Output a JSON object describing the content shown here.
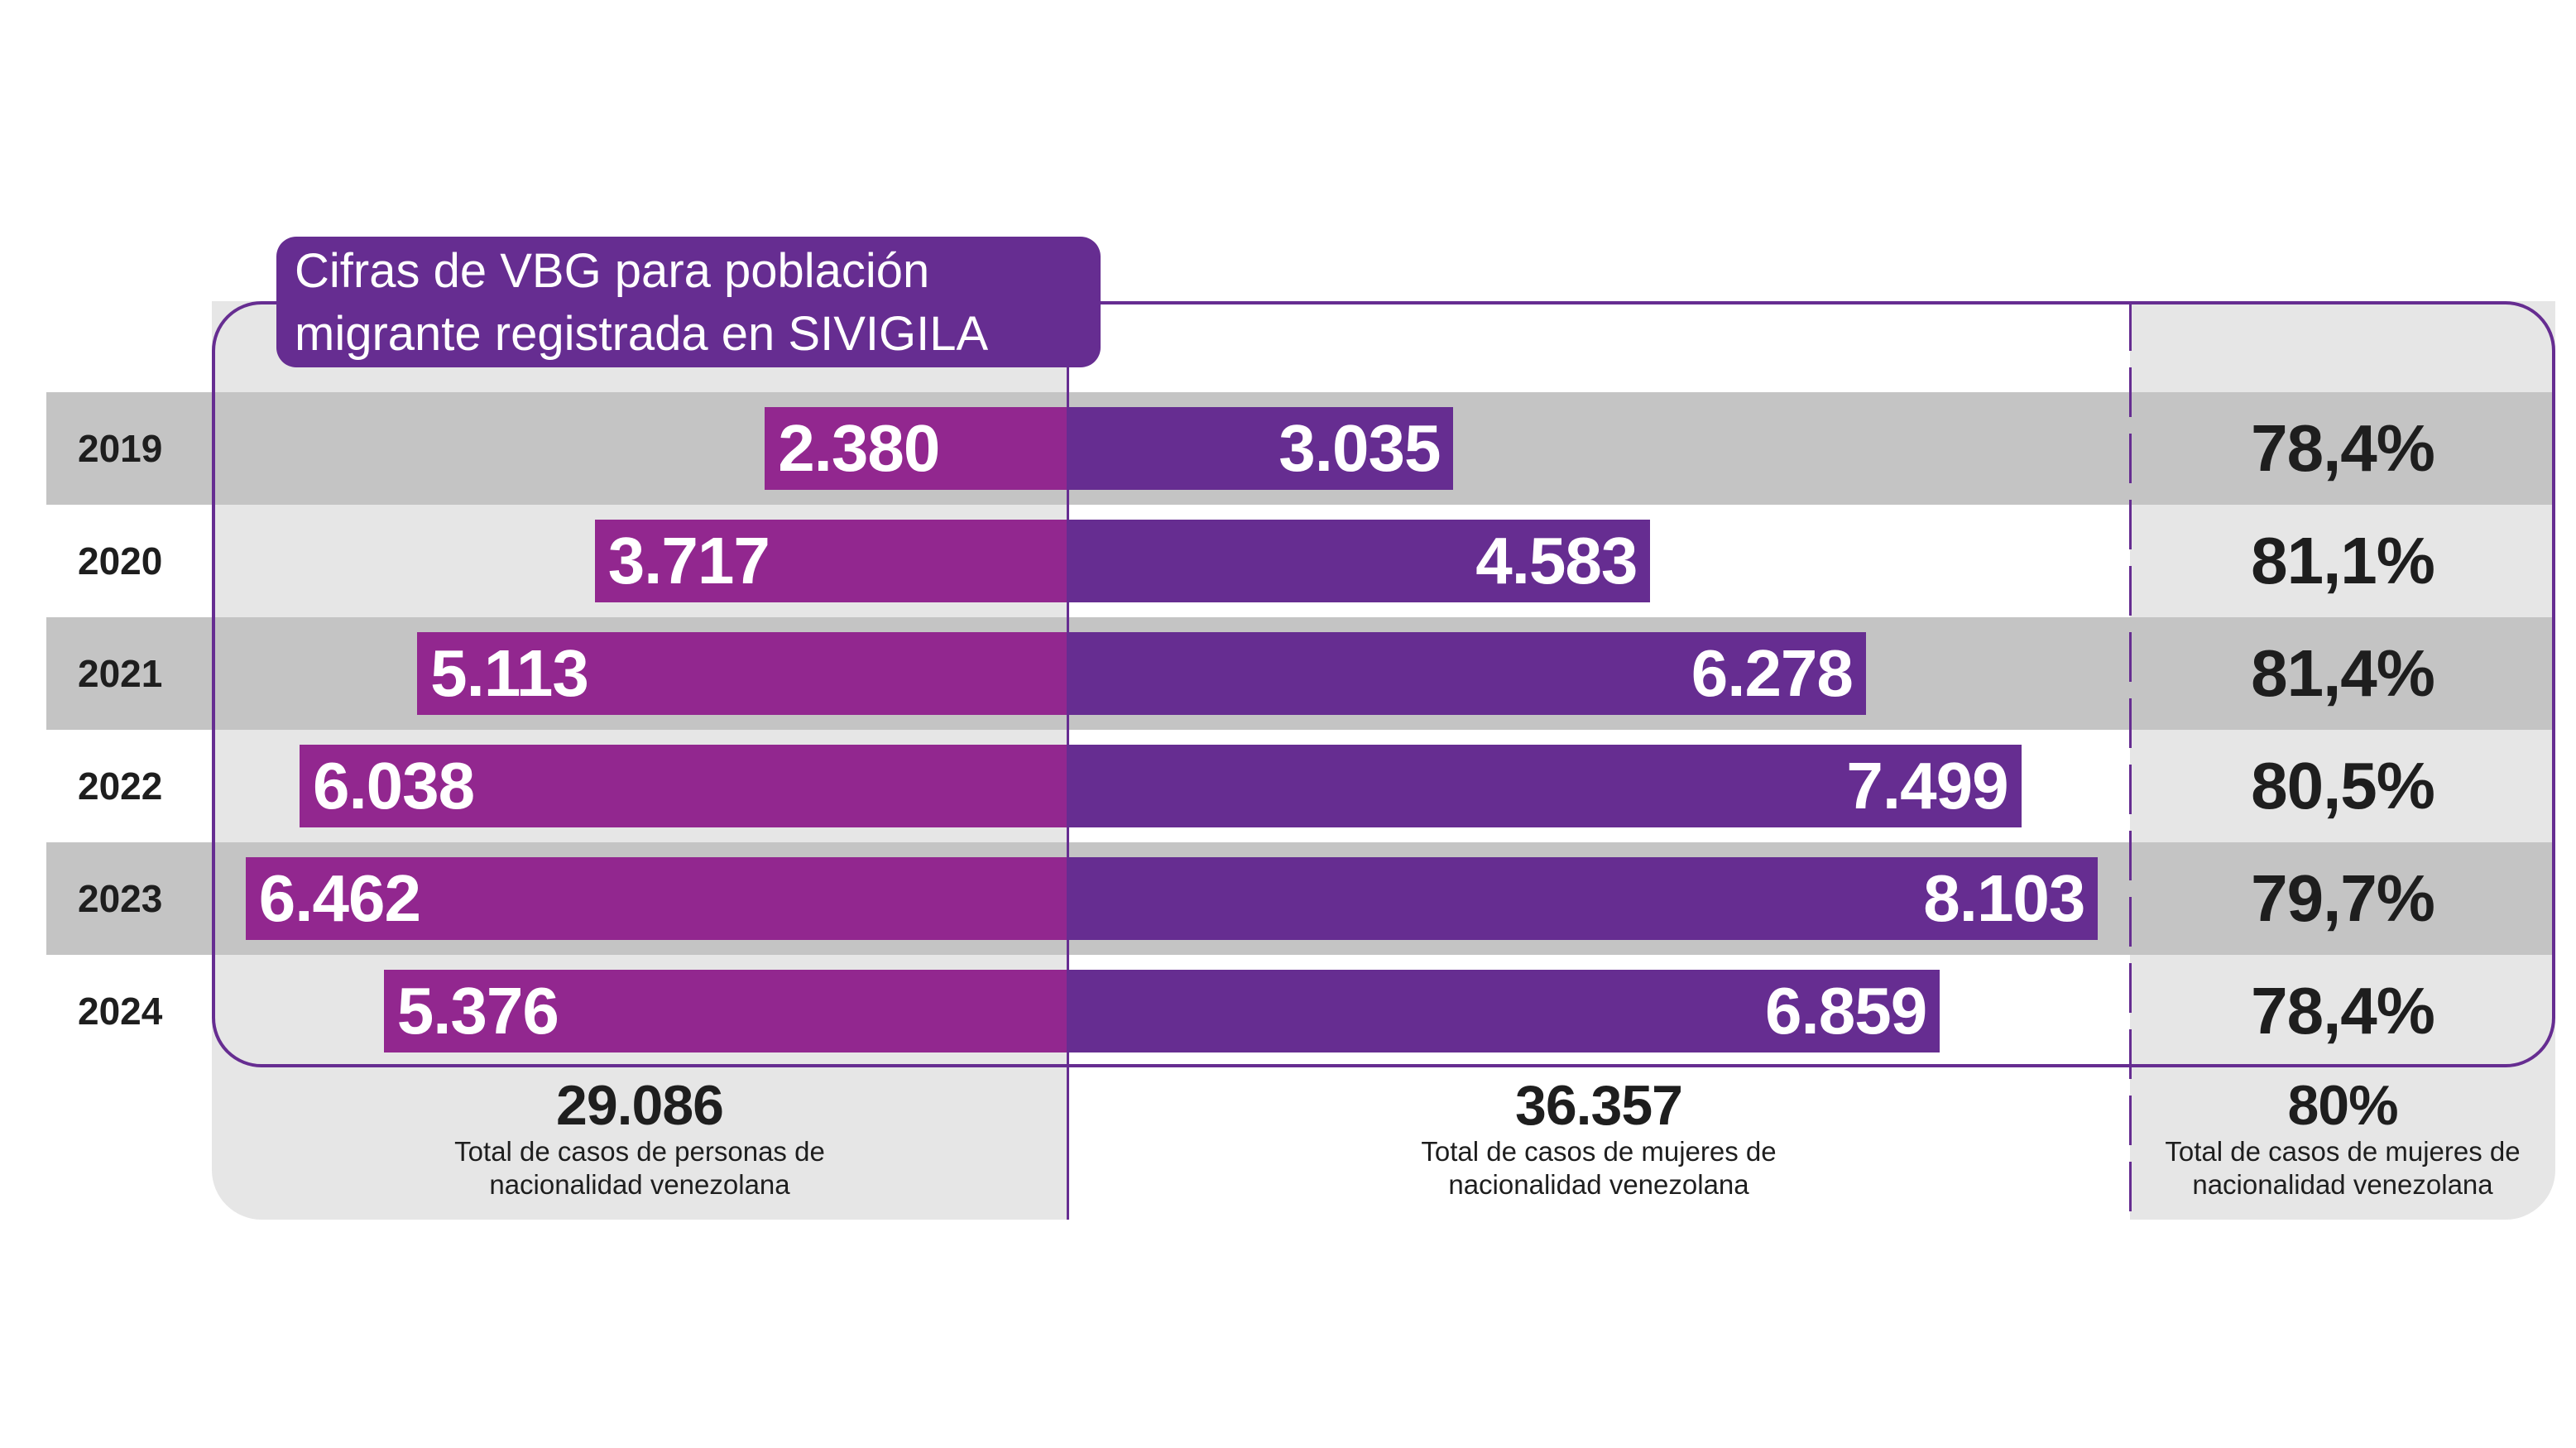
{
  "title": "Cifras de VBG para población migrante registrada en SIVIGILA",
  "colors": {
    "persons": "#92278f",
    "women": "#662d91",
    "dark_row": "#c4c4c4",
    "light_panel": "#e6e6e6"
  },
  "chart_data": {
    "type": "bar",
    "orientation": "horizontal-diverging",
    "title": "Cifras de VBG para población migrante registrada en SIVIGILA",
    "categories": [
      "2019",
      "2020",
      "2021",
      "2022",
      "2023",
      "2024"
    ],
    "series": [
      {
        "name": "Casos de personas de nacionalidad venezolana",
        "values": [
          2380,
          3717,
          5113,
          6038,
          6462,
          5376
        ],
        "labels": [
          "2.380",
          "3.717",
          "5.113",
          "6.038",
          "6.462",
          "5.376"
        ]
      },
      {
        "name": "Casos de mujeres de nacionalidad venezolana",
        "values": [
          3035,
          4583,
          6278,
          7499,
          8103,
          6859
        ],
        "labels": [
          "3.035",
          "4.583",
          "6.278",
          "7.499",
          "8.103",
          "6.859"
        ]
      }
    ],
    "percent_women": [
      "78,4%",
      "81,1%",
      "81,4%",
      "80,5%",
      "79,7%",
      "78,4%"
    ]
  },
  "totals": [
    {
      "value": "29.086",
      "caption1": "Total de casos de personas de",
      "caption2": "nacionalidad venezolana"
    },
    {
      "value": "36.357",
      "caption1": "Total de casos de mujeres de",
      "caption2": "nacionalidad venezolana"
    },
    {
      "value": "80%",
      "caption1": "Total de casos de mujeres de",
      "caption2": "nacionalidad venezolana"
    }
  ]
}
